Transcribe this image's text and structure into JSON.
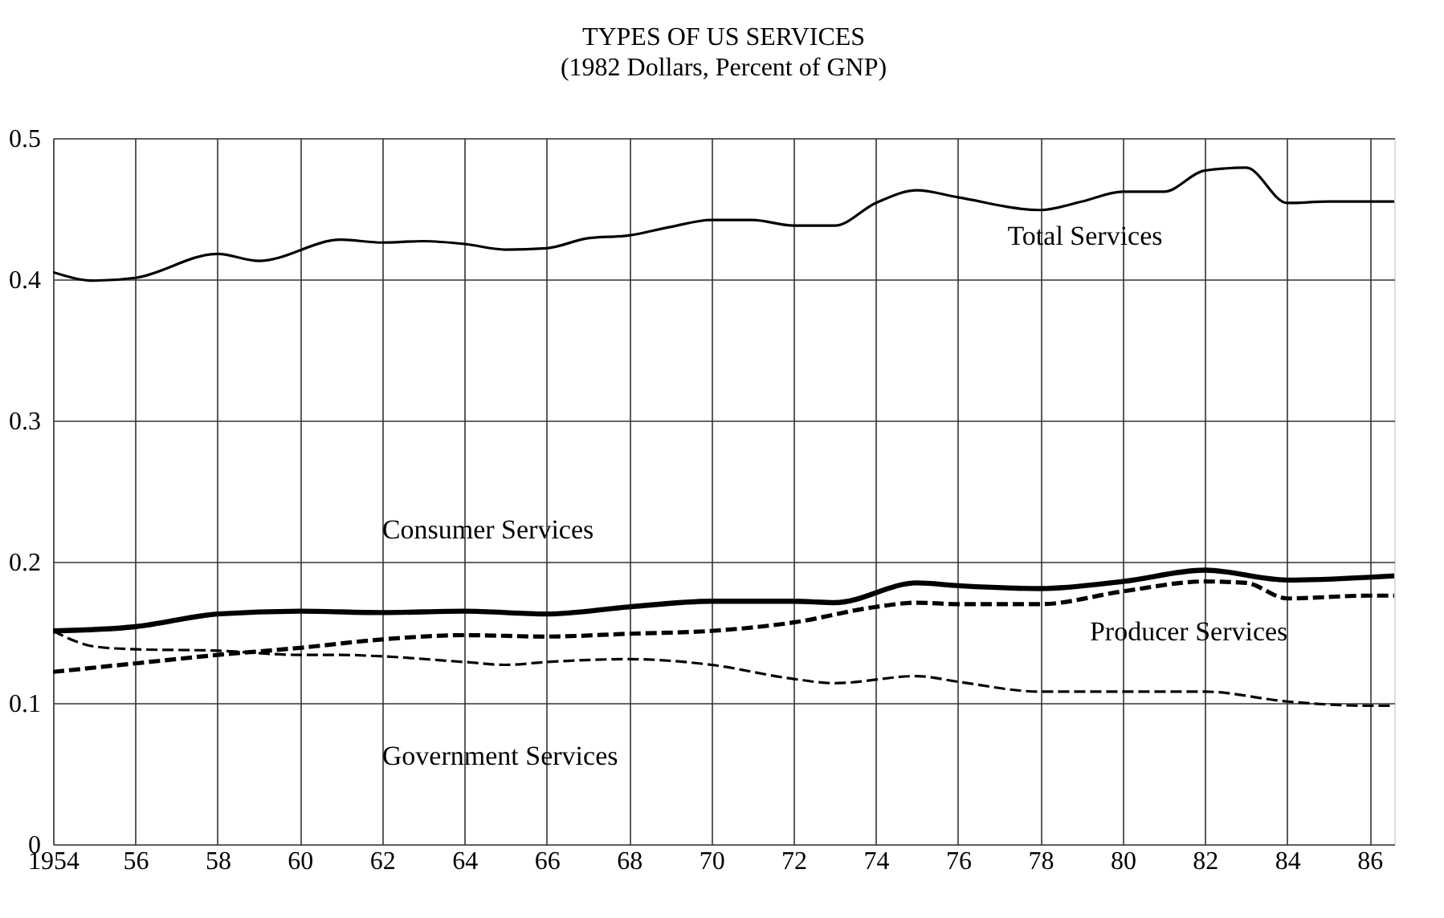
{
  "chart_data": {
    "type": "line",
    "title": "TYPES OF US SERVICES",
    "subtitle": "(1982 Dollars, Percent of GNP)",
    "xlim": [
      1954,
      1986.6
    ],
    "xticks": [
      1954,
      {
        "value": 1956,
        "label": "56"
      },
      {
        "value": 1958,
        "label": "58"
      },
      {
        "value": 1960,
        "label": "60"
      },
      {
        "value": 1962,
        "label": "62"
      },
      {
        "value": 1964,
        "label": "64"
      },
      {
        "value": 1966,
        "label": "66"
      },
      {
        "value": 1968,
        "label": "68"
      },
      {
        "value": 1970,
        "label": "70"
      },
      {
        "value": 1972,
        "label": "72"
      },
      {
        "value": 1974,
        "label": "74"
      },
      {
        "value": 1976,
        "label": "76"
      },
      {
        "value": 1978,
        "label": "78"
      },
      {
        "value": 1980,
        "label": "80"
      },
      {
        "value": 1982,
        "label": "82"
      },
      {
        "value": 1984,
        "label": "84"
      },
      {
        "value": 1986,
        "label": "86"
      }
    ],
    "ylim": [
      0,
      0.5
    ],
    "yticks": [
      0,
      0.1,
      0.2,
      0.3,
      0.4,
      0.5
    ],
    "grid": true,
    "marker": "none",
    "series": [
      {
        "name": "Total Services",
        "color": "#000000",
        "line_style": "solid",
        "x": [
          1954,
          1955,
          1956,
          1958,
          1959,
          1961,
          1962,
          1963,
          1964,
          1965,
          1966,
          1967,
          1968,
          1969,
          1970,
          1971,
          1972,
          1973,
          1974,
          1975,
          1976,
          1978,
          1979,
          1980,
          1981,
          1982,
          1983,
          1984,
          1985,
          1986,
          1986.6
        ],
        "values": [
          0.405,
          0.399,
          0.401,
          0.418,
          0.413,
          0.428,
          0.426,
          0.427,
          0.425,
          0.421,
          0.422,
          0.429,
          0.431,
          0.437,
          0.442,
          0.442,
          0.438,
          0.438,
          0.454,
          0.463,
          0.458,
          0.449,
          0.455,
          0.462,
          0.462,
          0.477,
          0.479,
          0.454,
          0.455,
          0.455,
          0.455
        ]
      },
      {
        "name": "Consumer Services",
        "color": "#000000",
        "line_style": "solid",
        "x": [
          1954,
          1956,
          1958,
          1960,
          1962,
          1964,
          1966,
          1968,
          1970,
          1972,
          1973,
          1975,
          1976,
          1978,
          1980,
          1982,
          1984,
          1986,
          1986.6
        ],
        "values": [
          0.151,
          0.154,
          0.163,
          0.165,
          0.164,
          0.165,
          0.163,
          0.168,
          0.172,
          0.172,
          0.171,
          0.185,
          0.183,
          0.181,
          0.186,
          0.194,
          0.187,
          0.189,
          0.19
        ]
      },
      {
        "name": "Producer Services",
        "color": "#000000",
        "line_style": "dashed",
        "x": [
          1954,
          1956,
          1958,
          1960,
          1962,
          1964,
          1966,
          1968,
          1970,
          1972,
          1974,
          1975,
          1976,
          1978,
          1980,
          1982,
          1983,
          1984,
          1986,
          1986.6
        ],
        "values": [
          0.122,
          0.128,
          0.134,
          0.139,
          0.145,
          0.148,
          0.147,
          0.149,
          0.151,
          0.157,
          0.168,
          0.171,
          0.17,
          0.17,
          0.179,
          0.186,
          0.185,
          0.174,
          0.176,
          0.176
        ]
      },
      {
        "name": "Government Services",
        "color": "#000000",
        "line_style": "dashed",
        "x": [
          1954,
          1955,
          1956,
          1958,
          1960,
          1961,
          1962,
          1964,
          1965,
          1966,
          1968,
          1970,
          1972,
          1973,
          1975,
          1976,
          1978,
          1980,
          1982,
          1984,
          1986,
          1986.6
        ],
        "values": [
          0.151,
          0.14,
          0.138,
          0.137,
          0.134,
          0.134,
          0.133,
          0.129,
          0.127,
          0.129,
          0.131,
          0.127,
          0.117,
          0.114,
          0.119,
          0.115,
          0.108,
          0.108,
          0.108,
          0.101,
          0.098,
          0.098
        ]
      }
    ]
  }
}
